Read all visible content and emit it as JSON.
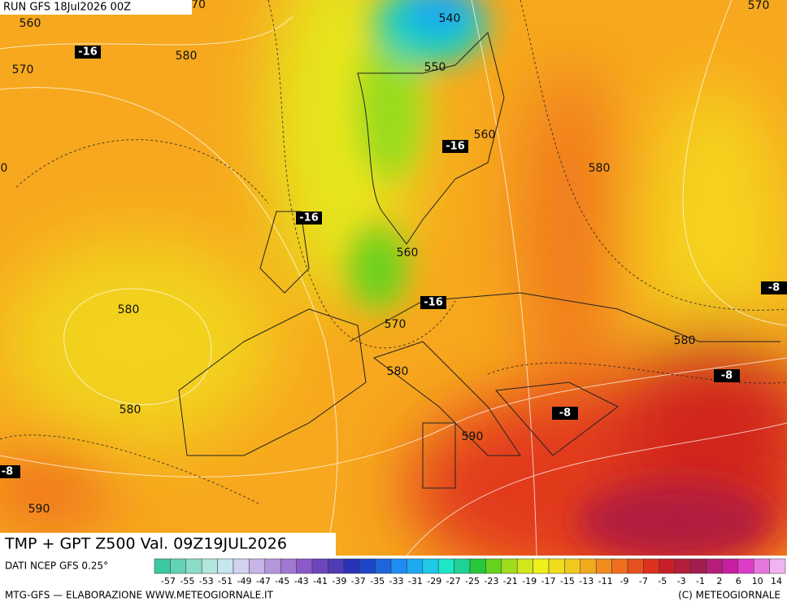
{
  "header": {
    "run": "RUN GFS 18Jul2026 00Z",
    "title": "TMP + GPT Z500 Val. 09Z19JUL2026",
    "source": "DATI NCEP GFS 0.25°",
    "credit": "MTG-GFS — ELABORAZIONE WWW.METEOGIORNALE.IT",
    "copyright": "(C) METEOGIORNALE"
  },
  "contour_labels": [
    "540",
    "550",
    "560",
    "580",
    "560",
    "570",
    "580",
    "580",
    "590",
    "580",
    "580",
    "590",
    "560",
    "570",
    "580",
    "570",
    "70",
    "0"
  ],
  "temperature_labels": [
    "-16",
    "-16",
    "-16",
    "-16",
    "-8",
    "-8",
    "-8",
    "-8"
  ],
  "colorbar": {
    "labels": [
      -57,
      -55,
      -53,
      -51,
      -49,
      -47,
      -45,
      -43,
      -41,
      -39,
      -37,
      -35,
      -33,
      -31,
      -29,
      -27,
      -25,
      -23,
      -21,
      -19,
      -17,
      -15,
      -13,
      -11,
      -9,
      -7,
      -5,
      -3,
      -1,
      2,
      6,
      10,
      14
    ],
    "colors": [
      "#3cc8a0",
      "#64d2b4",
      "#8cdcc8",
      "#b4e6dc",
      "#c8e6f0",
      "#d2d2f0",
      "#c8b4e6",
      "#b496dc",
      "#a078d2",
      "#8c5ac8",
      "#6e46be",
      "#503cb4",
      "#2832b4",
      "#1e46c8",
      "#1e64dc",
      "#1e8cf0",
      "#1eaaf0",
      "#1ec8e6",
      "#1ee6c8",
      "#1ed296",
      "#28c83c",
      "#64d21e",
      "#a0dc1e",
      "#d2e61e",
      "#f0f01e",
      "#f0dc1e",
      "#f0c81e",
      "#f0aa1e",
      "#f08c1e",
      "#f06e1e",
      "#e6501e",
      "#dc321e",
      "#c81e28",
      "#b41e3c",
      "#a01e50",
      "#b41e78",
      "#c81ea0",
      "#dc3cc8",
      "#e678dc",
      "#f0b4f0"
    ]
  }
}
